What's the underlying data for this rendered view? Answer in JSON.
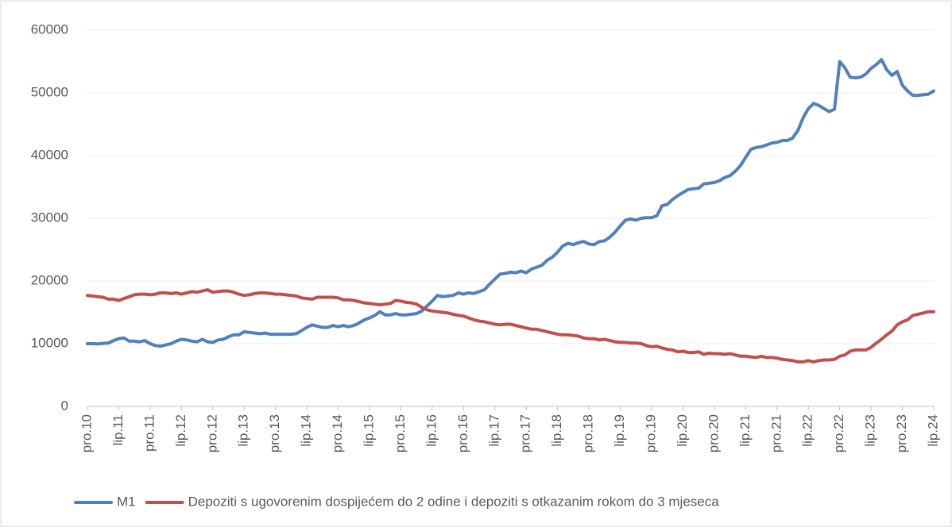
{
  "chart_data": {
    "type": "line",
    "categories": [
      "pro.10",
      null,
      null,
      null,
      null,
      null,
      "lip.11",
      null,
      null,
      null,
      null,
      null,
      "pro.11",
      null,
      null,
      null,
      null,
      null,
      "lip.12",
      null,
      null,
      null,
      null,
      null,
      "pro.12",
      null,
      null,
      null,
      null,
      null,
      "lip.13",
      null,
      null,
      null,
      null,
      null,
      "pro.13",
      null,
      null,
      null,
      null,
      null,
      "lip.14",
      null,
      null,
      null,
      null,
      null,
      "pro.14",
      null,
      null,
      null,
      null,
      null,
      "lip.15",
      null,
      null,
      null,
      null,
      null,
      "pro.15",
      null,
      null,
      null,
      null,
      null,
      "lip.16",
      null,
      null,
      null,
      null,
      null,
      "pro.16",
      null,
      null,
      null,
      null,
      null,
      "lip.17",
      null,
      null,
      null,
      null,
      null,
      "pro.17",
      null,
      null,
      null,
      null,
      null,
      "lip.18",
      null,
      null,
      null,
      null,
      null,
      "pro.18",
      null,
      null,
      null,
      null,
      null,
      "lip.19",
      null,
      null,
      null,
      null,
      null,
      "pro.19",
      null,
      null,
      null,
      null,
      null,
      "lip.20",
      null,
      null,
      null,
      null,
      null,
      "pro.20",
      null,
      null,
      null,
      null,
      null,
      "lip.21",
      null,
      null,
      null,
      null,
      null,
      "pro.21",
      null,
      null,
      null,
      null,
      null,
      "lip.22",
      null,
      null,
      null,
      null,
      null,
      "pro.22",
      null,
      null,
      null,
      null,
      null,
      "lip.23",
      null,
      null,
      null,
      null,
      null,
      "pro.23",
      null,
      null,
      null,
      null,
      null,
      "lip.24"
    ],
    "series": [
      {
        "name": "M1",
        "color": "#4f81bd",
        "values": [
          10000,
          10000,
          9950,
          10050,
          10100,
          10500,
          10800,
          10900,
          10400,
          10400,
          10300,
          10500,
          10000,
          9700,
          9600,
          9800,
          10000,
          10400,
          10700,
          10600,
          10400,
          10300,
          10700,
          10300,
          10200,
          10600,
          10700,
          11100,
          11400,
          11400,
          11900,
          11800,
          11700,
          11600,
          11700,
          11500,
          11500,
          11500,
          11500,
          11500,
          11600,
          12100,
          12600,
          13000,
          12800,
          12600,
          12600,
          12900,
          12700,
          12900,
          12700,
          12900,
          13300,
          13800,
          14100,
          14500,
          15100,
          14600,
          14600,
          14800,
          14600,
          14600,
          14700,
          14800,
          15200,
          16000,
          16800,
          17700,
          17500,
          17600,
          17700,
          18100,
          17900,
          18100,
          18000,
          18300,
          18600,
          19500,
          20300,
          21100,
          21200,
          21400,
          21300,
          21600,
          21300,
          21900,
          22200,
          22500,
          23300,
          23800,
          24600,
          25600,
          26000,
          25800,
          26100,
          26300,
          25900,
          25800,
          26300,
          26400,
          27000,
          27800,
          28800,
          29700,
          29900,
          29700,
          30000,
          30100,
          30100,
          30400,
          32000,
          32200,
          33000,
          33600,
          34100,
          34600,
          34700,
          34800,
          35500,
          35600,
          35700,
          36000,
          36500,
          36800,
          37500,
          38400,
          39700,
          41000,
          41300,
          41400,
          41700,
          42000,
          42100,
          42400,
          42400,
          42800,
          44000,
          46000,
          47500,
          48300,
          48000,
          47500,
          47000,
          47400,
          55000,
          54000,
          52500,
          52400,
          52500,
          53000,
          53900,
          54500,
          55300,
          53700,
          52800,
          53400,
          51200,
          50300,
          49600,
          49600,
          49700,
          49800,
          50300
        ]
      },
      {
        "name": "Depoziti s ugovorenim dospijećem do 2 odine i depoziti s otkazanim rokom do 3 mjeseca",
        "color": "#c0504d",
        "values": [
          17700,
          17600,
          17500,
          17400,
          17100,
          17100,
          16900,
          17200,
          17500,
          17800,
          17900,
          17900,
          17800,
          17900,
          18100,
          18100,
          18000,
          18100,
          17900,
          18100,
          18300,
          18200,
          18400,
          18600,
          18200,
          18300,
          18400,
          18400,
          18200,
          17900,
          17700,
          17800,
          18000,
          18100,
          18100,
          18000,
          17900,
          17900,
          17800,
          17700,
          17600,
          17300,
          17200,
          17100,
          17400,
          17400,
          17400,
          17400,
          17300,
          17000,
          17000,
          16900,
          16700,
          16500,
          16400,
          16300,
          16200,
          16300,
          16400,
          16900,
          16800,
          16600,
          16500,
          16300,
          15800,
          15400,
          15200,
          15100,
          15000,
          14900,
          14700,
          14500,
          14400,
          14100,
          13800,
          13600,
          13500,
          13300,
          13100,
          13000,
          13100,
          13100,
          12900,
          12700,
          12500,
          12300,
          12300,
          12100,
          11900,
          11700,
          11500,
          11400,
          11400,
          11300,
          11200,
          10900,
          10800,
          10800,
          10600,
          10700,
          10500,
          10300,
          10200,
          10200,
          10100,
          10100,
          10000,
          9700,
          9500,
          9600,
          9300,
          9100,
          9000,
          8700,
          8800,
          8600,
          8600,
          8700,
          8300,
          8500,
          8400,
          8400,
          8300,
          8400,
          8200,
          8000,
          8000,
          7900,
          7800,
          8000,
          7800,
          7800,
          7700,
          7500,
          7400,
          7300,
          7100,
          7100,
          7300,
          7100,
          7300,
          7400,
          7400,
          7500,
          8000,
          8200,
          8800,
          9000,
          9000,
          9000,
          9400,
          10100,
          10700,
          11400,
          12000,
          13000,
          13500,
          13800,
          14500,
          14700,
          14900,
          15100,
          15100
        ]
      }
    ],
    "ylim": [
      0,
      60000
    ],
    "yticks": [
      0,
      10000,
      20000,
      30000,
      40000,
      50000,
      60000
    ],
    "grid": true,
    "legend": "bottom"
  }
}
